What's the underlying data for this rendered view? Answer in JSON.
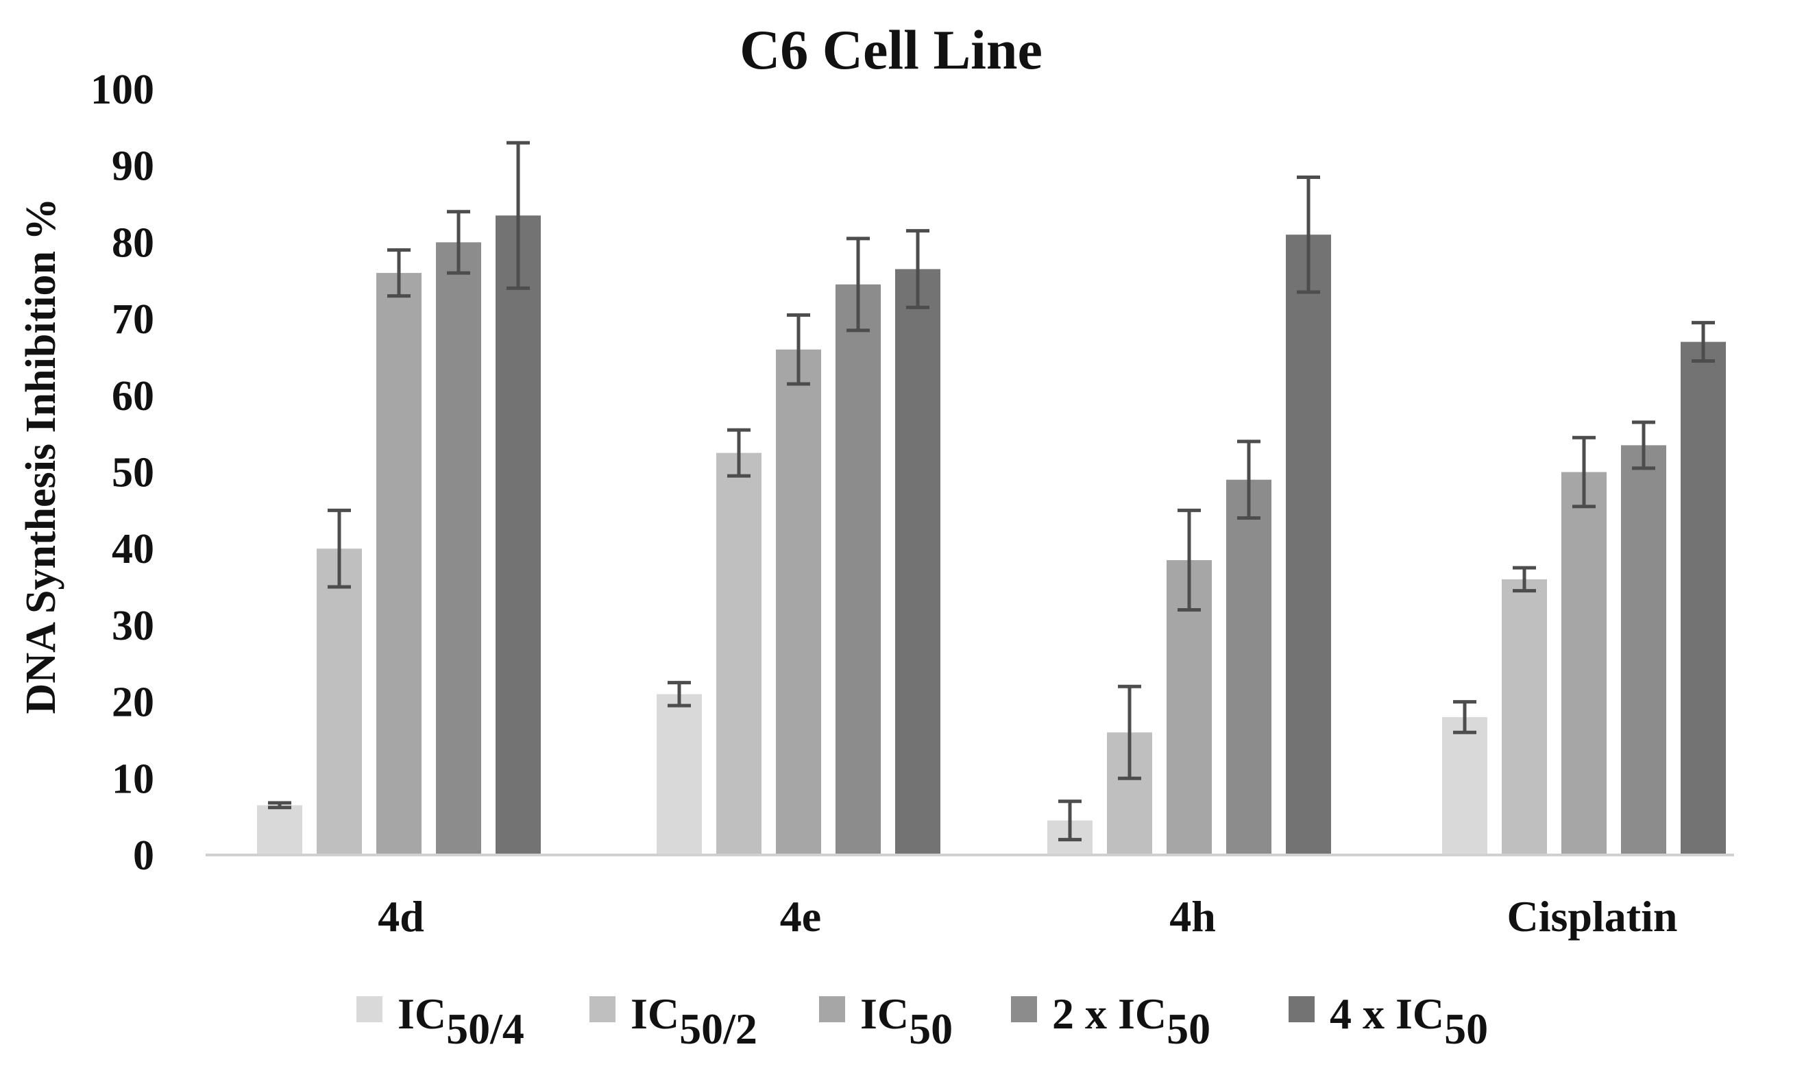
{
  "chart_data": {
    "type": "bar",
    "title": "C6 Cell Line",
    "xlabel": "",
    "ylabel": "DNA Synthesis Inhibition %",
    "ylim": [
      0,
      100
    ],
    "yticks": [
      "0",
      "10",
      "20",
      "30",
      "40",
      "50",
      "60",
      "70",
      "80",
      "90",
      "100"
    ],
    "grid": false,
    "legend_position": "bottom",
    "categories": [
      "4d",
      "4e",
      "4h",
      "Cisplatin"
    ],
    "series": [
      {
        "name": "IC50/4",
        "label_main": "IC",
        "label_sub": "50",
        "label_tail": "/4",
        "color": "#d9d9d9",
        "values": [
          6.5,
          21.0,
          4.5,
          18.0
        ],
        "errors": [
          0.3,
          1.5,
          2.5,
          2.0
        ]
      },
      {
        "name": "IC50/2",
        "label_main": "IC",
        "label_sub": "50",
        "label_tail": "/2",
        "color": "#bfbfbf",
        "values": [
          40.0,
          52.5,
          16.0,
          36.0
        ],
        "errors": [
          5.0,
          3.0,
          6.0,
          1.5
        ]
      },
      {
        "name": "IC50",
        "label_main": "IC",
        "label_sub": "50",
        "label_tail": "",
        "color": "#a6a6a6",
        "values": [
          76.0,
          66.0,
          38.5,
          50.0
        ],
        "errors": [
          3.0,
          4.5,
          6.5,
          4.5
        ]
      },
      {
        "name": "2 x IC50",
        "label_main": "2 x IC",
        "label_sub": "50",
        "label_tail": "",
        "color": "#8c8c8c",
        "values": [
          80.0,
          74.5,
          49.0,
          53.5
        ],
        "errors": [
          4.0,
          6.0,
          5.0,
          3.0
        ]
      },
      {
        "name": "4 x IC50",
        "label_main": "4 x IC",
        "label_sub": "50",
        "label_tail": "",
        "color": "#737373",
        "values": [
          83.5,
          76.5,
          81.0,
          67.0
        ],
        "errors": [
          9.5,
          5.0,
          7.5,
          2.5
        ]
      }
    ],
    "errorbar_color": "#4d4d4d"
  }
}
